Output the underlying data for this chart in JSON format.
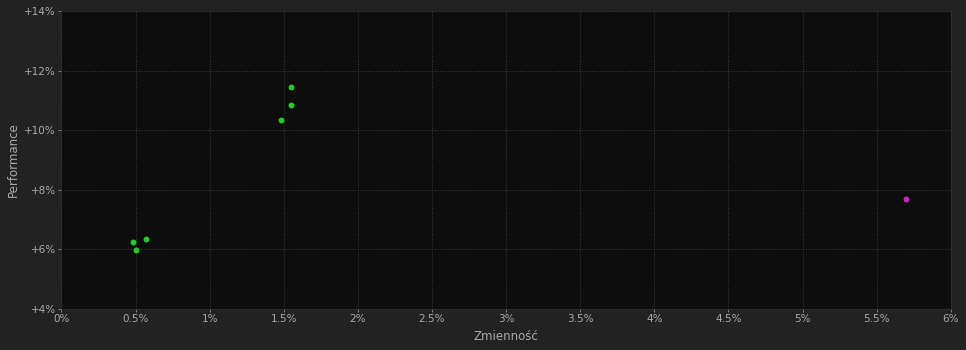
{
  "background_color": "#222222",
  "plot_bg_color": "#0d0d0d",
  "grid_color": "#3a3a3a",
  "xlabel": "Zmienność",
  "ylabel": "Performance",
  "xlim": [
    0.0,
    0.06
  ],
  "ylim": [
    0.04,
    0.14
  ],
  "xticks": [
    0.0,
    0.005,
    0.01,
    0.015,
    0.02,
    0.025,
    0.03,
    0.035,
    0.04,
    0.045,
    0.05,
    0.055,
    0.06
  ],
  "xticklabels": [
    "0%",
    "0.5%",
    "1%",
    "1.5%",
    "2%",
    "2.5%",
    "3%",
    "3.5%",
    "4%",
    "4.5%",
    "5%",
    "5.5%",
    "6%"
  ],
  "yticks": [
    0.04,
    0.06,
    0.08,
    0.1,
    0.12,
    0.14
  ],
  "yticklabels": [
    "+4%",
    "+6%",
    "+8%",
    "+10%",
    "+12%",
    "+14%"
  ],
  "green_points": [
    [
      0.0048,
      0.0625
    ],
    [
      0.0057,
      0.0635
    ],
    [
      0.005,
      0.0598
    ],
    [
      0.0148,
      0.1035
    ],
    [
      0.0155,
      0.1085
    ],
    [
      0.0155,
      0.1145
    ]
  ],
  "magenta_points": [
    [
      0.057,
      0.077
    ]
  ],
  "green_color": "#22cc22",
  "magenta_color": "#cc22cc",
  "tick_color": "#aaaaaa",
  "label_color": "#aaaaaa",
  "marker_size": 18
}
